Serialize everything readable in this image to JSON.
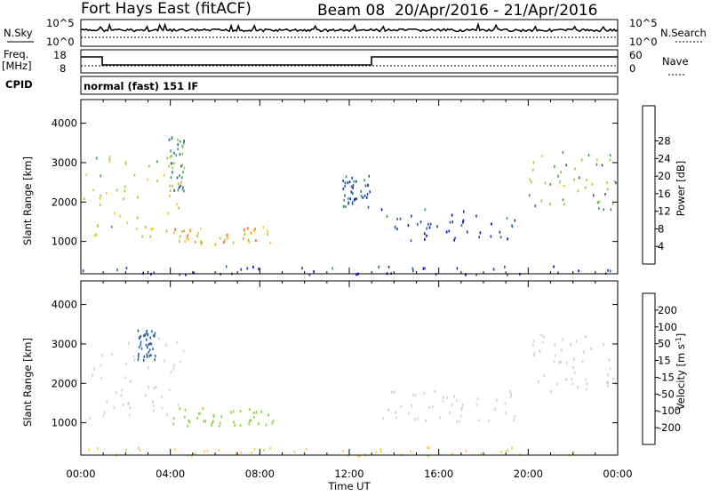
{
  "header": {
    "station": "Fort Hays East (fitACF)",
    "beam": "Beam 08",
    "date_range": "20/Apr/2016 - 21/Apr/2016"
  },
  "status_rows": {
    "nsky_label": "N.Sky",
    "nsky_ticks": [
      "10^5",
      "10^0"
    ],
    "nsearch_label": "N.Search",
    "nsearch_ticks": [
      "10^5",
      "10^0"
    ],
    "freq_label": "Freq.",
    "freq_unit": "[MHz]",
    "freq_ticks": [
      "18",
      "8"
    ],
    "nave_label": "Nave",
    "nave_ticks": [
      "60",
      "0"
    ],
    "cpid_label": "CPID",
    "cpid_text": "normal (fast) 151 IF"
  },
  "colors": {
    "power_scale": [
      "#0000ee",
      "#1a3aa8",
      "#2f5f96",
      "#3f9a67",
      "#9ccc3a",
      "#f2c81e",
      "#f59a18",
      "#f06614",
      "#e81410"
    ],
    "velocity_scale": [
      "#e81410",
      "#f06614",
      "#f5a020",
      "#f2cc4a",
      "#cfcfc7",
      "#8ad23a",
      "#3c9c3c",
      "#2f62a0",
      "#1a2fa8"
    ]
  },
  "chart_data": [
    {
      "type": "heatmap",
      "name": "power",
      "x": {
        "label": "",
        "ticks": [
          "00:00",
          "04:00",
          "08:00",
          "12:00",
          "16:00",
          "20:00",
          "00:00"
        ],
        "range_hours": [
          0,
          24
        ]
      },
      "y": {
        "label": "Slant Range [km]",
        "ticks": [
          1000,
          2000,
          3000,
          4000
        ],
        "range": [
          180,
          4600
        ]
      },
      "colorbar": {
        "label": "Power [dB]",
        "tick_labels": [
          "4",
          "8",
          "12",
          "16",
          "20",
          "24",
          "28"
        ],
        "range": [
          0,
          32
        ]
      },
      "echo_regions": [
        {
          "t": [
            0.0,
            4.6
          ],
          "r": [
            1150,
            3200
          ],
          "value": 18
        },
        {
          "t": [
            3.9,
            4.6
          ],
          "r": [
            2300,
            3700
          ],
          "value": 12
        },
        {
          "t": [
            4.1,
            8.6
          ],
          "r": [
            950,
            1400
          ],
          "value": 21
        },
        {
          "t": [
            0.0,
            24.0
          ],
          "r": [
            180,
            400
          ],
          "value": 6
        },
        {
          "t": [
            11.7,
            12.9
          ],
          "r": [
            1900,
            2700
          ],
          "value": 8
        },
        {
          "t": [
            13.3,
            19.5
          ],
          "r": [
            1050,
            1850
          ],
          "value": 7
        },
        {
          "t": [
            19.9,
            24.0
          ],
          "r": [
            1800,
            3300
          ],
          "value": 14
        }
      ]
    },
    {
      "type": "heatmap",
      "name": "velocity",
      "x": {
        "label": "Time UT",
        "ticks": [
          "00:00",
          "04:00",
          "08:00",
          "12:00",
          "16:00",
          "20:00",
          "00:00"
        ],
        "range_hours": [
          0,
          24
        ]
      },
      "y": {
        "label": "Slant Range [km]",
        "ticks": [
          1000,
          2000,
          3000,
          4000
        ],
        "range": [
          180,
          4600
        ]
      },
      "colorbar": {
        "label": "Velocity [m s^-1]",
        "tick_labels": [
          "-200",
          "-100",
          "-50",
          "-15",
          "15",
          "50",
          "100",
          "200"
        ]
      },
      "echo_regions": [
        {
          "t": [
            0.0,
            4.6
          ],
          "r": [
            1150,
            3200
          ],
          "value": 0
        },
        {
          "t": [
            4.1,
            8.6
          ],
          "r": [
            950,
            1400
          ],
          "value": 40
        },
        {
          "t": [
            2.5,
            3.3
          ],
          "r": [
            2600,
            3400
          ],
          "value": 120
        },
        {
          "t": [
            0.0,
            24.0
          ],
          "r": [
            180,
            400
          ],
          "value": -30
        },
        {
          "t": [
            13.3,
            19.5
          ],
          "r": [
            1050,
            1850
          ],
          "value": 0
        },
        {
          "t": [
            19.9,
            24.0
          ],
          "r": [
            1800,
            3300
          ],
          "value": 0
        }
      ]
    }
  ]
}
